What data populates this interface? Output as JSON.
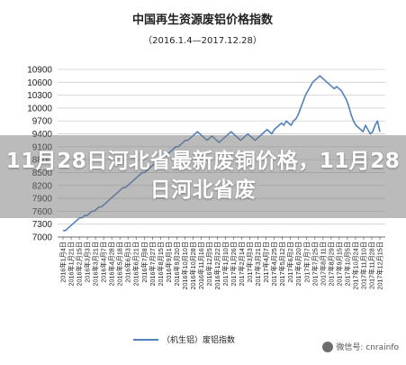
{
  "chart_data": {
    "type": "line",
    "title": "中国再生资源废铝价格指数",
    "subtitle": "（2016.1.4—2017.12.28）",
    "xlabel": "",
    "ylabel": "",
    "ylim": [
      7000,
      10900
    ],
    "yticks": [
      7000,
      7300,
      7600,
      7900,
      8200,
      8500,
      8800,
      9100,
      9400,
      9700,
      10000,
      10300,
      10600,
      10900
    ],
    "grid": true,
    "legend": "bottom-center",
    "x_tick_labels": [
      "2016年1月4日",
      "2016年1月21日",
      "2016年2月15日",
      "2016年3月3日",
      "2016年3月21日",
      "2016年4月7日",
      "2016年4月28日",
      "2016年5月18日",
      "2016年6月3日",
      "2016年6月21日",
      "2016年7月8日",
      "2016年7月27日",
      "2016年8月15日",
      "2016年9月1日",
      "2016年9月20日",
      "2016年10月10日",
      "2016年10月28日",
      "2016年11月16日",
      "2016年12月5日",
      "2016年12月22日",
      "2017年1月10日",
      "2017年1月26日",
      "2017年2月14日",
      "2017年3月3日",
      "2017年3月21日",
      "2017年4月7日",
      "2017年4月25日",
      "2017年5月12日",
      "2017年6月2日",
      "2017年6月20日",
      "2017年7月7日",
      "2017年7月25日",
      "2017年8月11日",
      "2017年8月29日",
      "2017年9月15日",
      "2017年10月5日",
      "2017年10月24日",
      "2017年11月10日",
      "2017年11月28日",
      "2017年12月15日"
    ],
    "series": [
      {
        "name": "（机生铝）废铝指数",
        "color": "#4f81bd",
        "values": [
          7150,
          7150,
          7200,
          7250,
          7300,
          7350,
          7400,
          7450,
          7450,
          7500,
          7500,
          7550,
          7600,
          7600,
          7650,
          7700,
          7700,
          7750,
          7800,
          7850,
          7900,
          7950,
          8000,
          8050,
          8100,
          8150,
          8150,
          8200,
          8250,
          8300,
          8350,
          8400,
          8450,
          8500,
          8500,
          8550,
          8600,
          8650,
          8700,
          8750,
          8800,
          8850,
          8900,
          8900,
          8950,
          9000,
          9050,
          9100,
          9100,
          9150,
          9200,
          9250,
          9250,
          9300,
          9350,
          9400,
          9450,
          9400,
          9350,
          9300,
          9250,
          9300,
          9350,
          9300,
          9250,
          9200,
          9250,
          9300,
          9350,
          9400,
          9450,
          9400,
          9350,
          9300,
          9250,
          9300,
          9350,
          9400,
          9350,
          9300,
          9250,
          9300,
          9350,
          9400,
          9450,
          9500,
          9450,
          9400,
          9500,
          9550,
          9600,
          9650,
          9600,
          9700,
          9650,
          9600,
          9700,
          9750,
          9850,
          10000,
          10150,
          10300,
          10400,
          10500,
          10600,
          10650,
          10700,
          10750,
          10700,
          10650,
          10600,
          10550,
          10500,
          10450,
          10500,
          10450,
          10400,
          10300,
          10200,
          10050,
          9850,
          9700,
          9600,
          9550,
          9500,
          9450,
          9600,
          9500,
          9400,
          9450,
          9600,
          9700,
          9450
        ]
      }
    ]
  },
  "overlay": {
    "headline": "11月28日河北省最新废铜价格，11月28日河北省废"
  },
  "watermark": {
    "text": "微信号: cnrainfo"
  }
}
